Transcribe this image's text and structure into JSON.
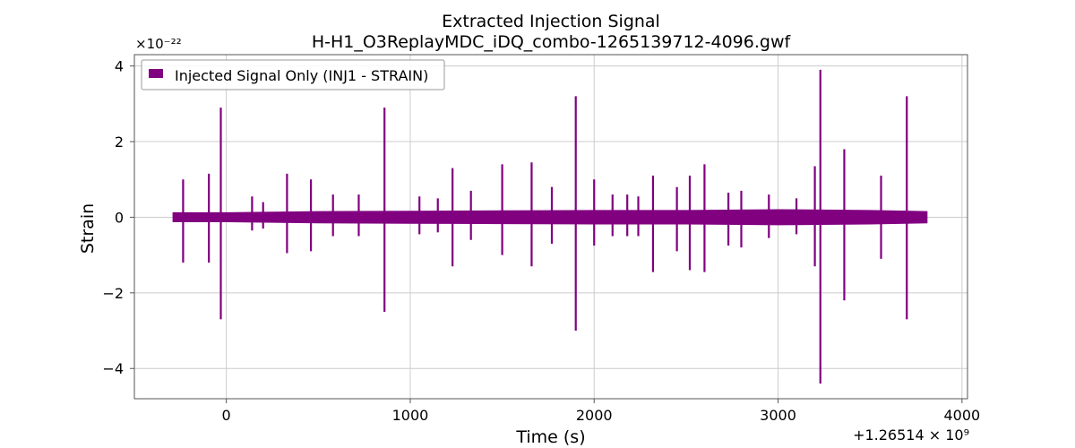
{
  "chart_data": {
    "type": "line",
    "title": "Extracted Injection Signal",
    "subtitle": "H-H1_O3ReplayMDC_iDQ_combo-1265139712-4096.gwf",
    "xlabel": "Time (s)",
    "ylabel": "Strain",
    "x_offset_label": "+1.26514 × 10⁹",
    "y_scale_label": "×10⁻²²",
    "xlim": [
      -500,
      4030
    ],
    "ylim": [
      -4.8,
      4.3
    ],
    "x_ticks": [
      0,
      1000,
      2000,
      3000,
      4000
    ],
    "x_tick_labels": [
      "0",
      "1000",
      "2000",
      "3000",
      "4000"
    ],
    "y_ticks": [
      -4,
      -2,
      0,
      2,
      4
    ],
    "y_tick_labels": [
      "−4",
      "−2",
      "0",
      "2",
      "4"
    ],
    "grid": true,
    "legend_position": "top-left",
    "series": [
      {
        "name": "Injected Signal Only (INJ1 - STRAIN)",
        "color": "#800080",
        "x_range": [
          -290,
          3810
        ],
        "baseline_envelope": [
          [
            -290,
            0.12,
            -0.12
          ],
          [
            0,
            0.12,
            -0.12
          ],
          [
            500,
            0.15,
            -0.15
          ],
          [
            1000,
            0.16,
            -0.16
          ],
          [
            1500,
            0.17,
            -0.17
          ],
          [
            2000,
            0.18,
            -0.18
          ],
          [
            2500,
            0.18,
            -0.18
          ],
          [
            3000,
            0.2,
            -0.2
          ],
          [
            3500,
            0.18,
            -0.18
          ],
          [
            3810,
            0.15,
            -0.15
          ]
        ],
        "spikes": [
          [
            -235,
            1.0,
            -1.2
          ],
          [
            -95,
            1.15,
            -1.2
          ],
          [
            -30,
            2.9,
            -2.7
          ],
          [
            140,
            0.55,
            -0.35
          ],
          [
            200,
            0.4,
            -0.3
          ],
          [
            330,
            1.15,
            -0.95
          ],
          [
            460,
            1.0,
            -0.9
          ],
          [
            580,
            0.6,
            -0.5
          ],
          [
            720,
            0.6,
            -0.5
          ],
          [
            860,
            2.9,
            -2.5
          ],
          [
            1050,
            0.55,
            -0.45
          ],
          [
            1150,
            0.5,
            -0.4
          ],
          [
            1230,
            1.3,
            -1.3
          ],
          [
            1330,
            0.7,
            -0.6
          ],
          [
            1500,
            1.4,
            -1.0
          ],
          [
            1660,
            1.45,
            -1.3
          ],
          [
            1770,
            0.8,
            -0.7
          ],
          [
            1900,
            3.2,
            -3.0
          ],
          [
            2000,
            1.0,
            -0.75
          ],
          [
            2100,
            0.6,
            -0.5
          ],
          [
            2180,
            0.6,
            -0.5
          ],
          [
            2240,
            0.55,
            -0.5
          ],
          [
            2320,
            1.1,
            -1.45
          ],
          [
            2450,
            0.8,
            -0.9
          ],
          [
            2520,
            1.1,
            -1.4
          ],
          [
            2600,
            1.4,
            -1.45
          ],
          [
            2730,
            0.65,
            -0.75
          ],
          [
            2800,
            0.7,
            -0.8
          ],
          [
            2950,
            0.6,
            -0.55
          ],
          [
            3100,
            0.5,
            -0.45
          ],
          [
            3200,
            1.35,
            -1.3
          ],
          [
            3230,
            3.9,
            -4.4
          ],
          [
            3360,
            1.8,
            -2.2
          ],
          [
            3560,
            1.1,
            -1.1
          ],
          [
            3700,
            3.2,
            -2.7
          ]
        ]
      }
    ]
  }
}
